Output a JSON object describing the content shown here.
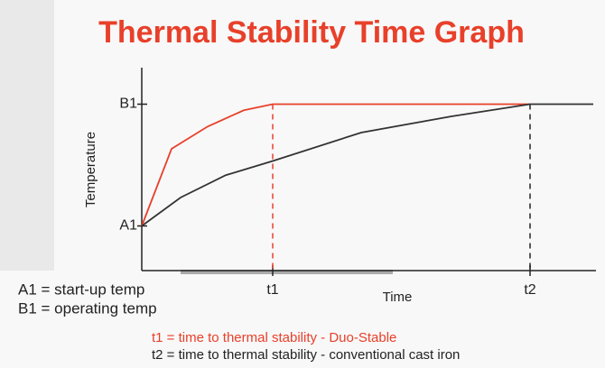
{
  "chart_data": {
    "type": "line",
    "title": "Thermal Stability Time Graph",
    "x_label": "Time",
    "y_label": "Temperature",
    "xlim": [
      0,
      100
    ],
    "ylim": [
      0,
      100
    ],
    "xticks": [
      {
        "value": 29,
        "label": "t1"
      },
      {
        "value": 86,
        "label": "t2"
      }
    ],
    "yticks": [
      {
        "value": 22,
        "label": "A1"
      },
      {
        "value": 82,
        "label": "B1"
      }
    ],
    "series": [
      {
        "color": "#e8402a",
        "x": [
          0,
          6.6,
          14.6,
          22.6,
          29,
          86
        ],
        "values": [
          22,
          60,
          71,
          79,
          82,
          82
        ]
      },
      {
        "color": "#333333",
        "x": [
          0,
          8.6,
          18.6,
          29,
          48.6,
          68.6,
          86,
          100
        ],
        "values": [
          22,
          36,
          47,
          54,
          68,
          76,
          82,
          82
        ]
      }
    ],
    "marker_colors": [
      "#e8402a",
      "#222222"
    ],
    "notes": [
      {
        "text": "A1 = start-up temp",
        "color": "#222222"
      },
      {
        "text": "B1 = operating temp",
        "color": "#222222"
      },
      {
        "text": "t1 = time to thermal stability - Duo-Stable",
        "color": "#e8402a"
      },
      {
        "text": "t2 = time to thermal stability - conventional cast iron",
        "color": "#222222"
      }
    ]
  }
}
